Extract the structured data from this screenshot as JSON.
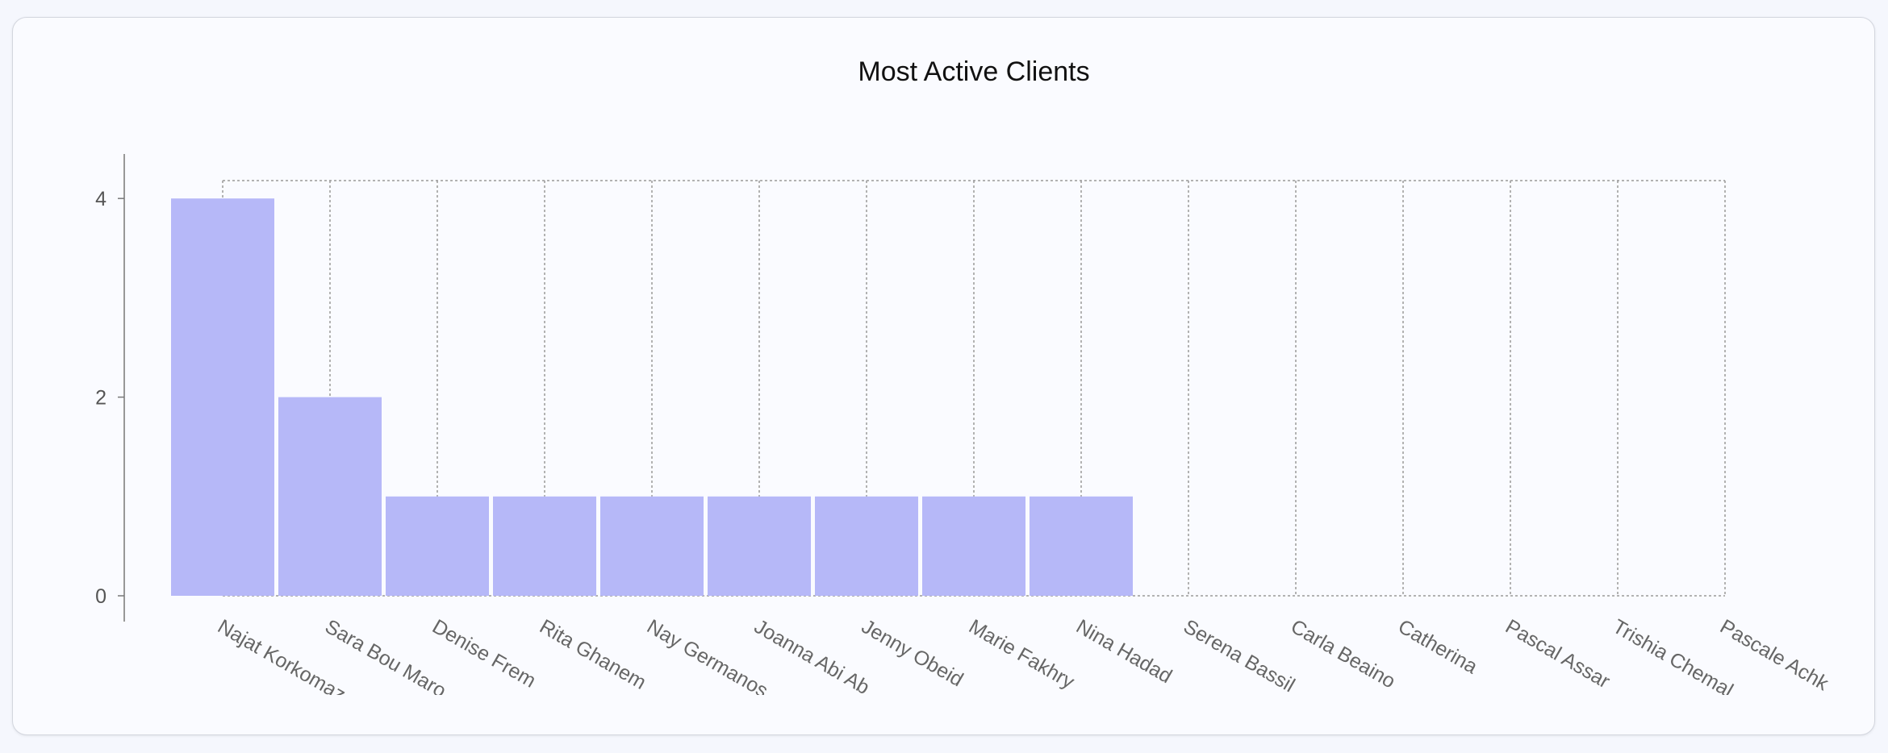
{
  "chart_data": {
    "type": "bar",
    "title": "Most Active Clients",
    "xlabel": "",
    "ylabel": "",
    "categories": [
      "Najat Korkomaz",
      "Sara Bou Maro",
      "Denise Frem",
      "Rita Ghanem",
      "Nay Germanos",
      "Joanna Abi Ab",
      "Jenny Obeid",
      "Marie Fakhry",
      "Nina Hadad",
      "Serena Bassil",
      "Carla Beaino",
      "Catherina",
      "Pascal Assar",
      "Trishia Chemal",
      "Pascale Achk"
    ],
    "values": [
      4,
      2,
      1,
      1,
      1,
      1,
      1,
      1,
      1,
      0,
      0,
      0,
      0,
      0,
      0
    ],
    "yticks": [
      0,
      2,
      4
    ],
    "ylim": [
      0,
      4.18
    ],
    "grid": true,
    "bar_color": "#b6b8f8"
  }
}
